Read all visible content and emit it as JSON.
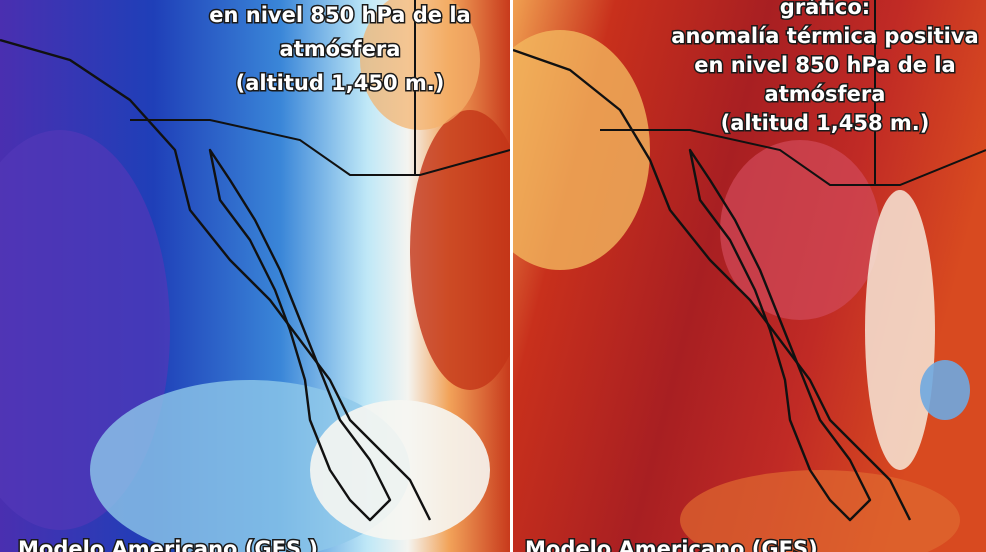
{
  "panels": [
    {
      "title_lines": [
        "en nivel 850 hPa de la",
        "atmósfera",
        "(altitud 1,450 m.)"
      ],
      "footer": "Modelo Americano (GFS )"
    },
    {
      "title_lines": [
        "gráfico:",
        "anomalía térmica positiva",
        "en nivel 850 hPa de la",
        "atmósfera",
        "(altitud 1,458 m.)"
      ],
      "footer": "Modelo Americano (GFS)"
    }
  ]
}
